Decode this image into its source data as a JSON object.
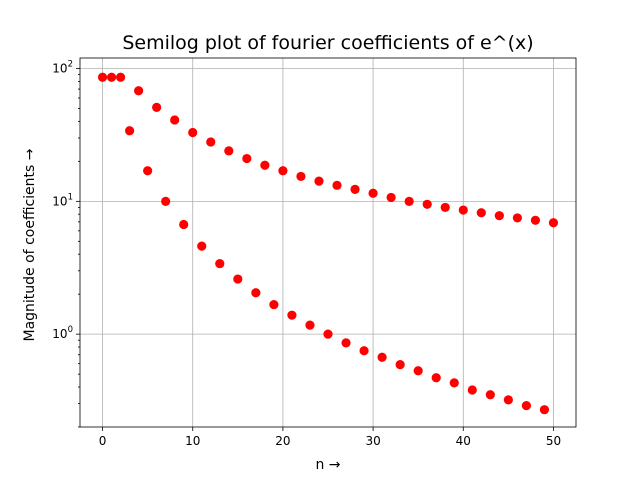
{
  "chart_data": {
    "type": "scatter",
    "title": "Semilog plot of fourier coefficients of e^(x)",
    "xlabel": "n →",
    "ylabel": "Magnitude of coefficients →",
    "yscale": "log",
    "xlim": [
      -2.5,
      52.5
    ],
    "ylim": [
      0.2,
      120
    ],
    "grid": true,
    "marker_color": "#ff0000",
    "x_ticks": [
      0,
      10,
      20,
      30,
      40,
      50
    ],
    "y_ticks": [
      {
        "value": 1,
        "base": "10",
        "exp": "0"
      },
      {
        "value": 10,
        "base": "10",
        "exp": "1"
      },
      {
        "value": 100,
        "base": "10",
        "exp": "2"
      }
    ],
    "series": [
      {
        "x": [
          0,
          1,
          2,
          4,
          6,
          8,
          10,
          12,
          14,
          16,
          18,
          20,
          22,
          24,
          26,
          28,
          30,
          32,
          34,
          36,
          38,
          40,
          42,
          44,
          46,
          48,
          50
        ],
        "values": [
          86,
          86,
          86,
          68,
          51,
          41,
          33,
          28,
          24,
          21,
          18.7,
          17,
          15.4,
          14.2,
          13.2,
          12.3,
          11.5,
          10.7,
          10.0,
          9.5,
          9.0,
          8.6,
          8.2,
          7.8,
          7.5,
          7.2,
          6.9
        ]
      },
      {
        "x": [
          3,
          5,
          7,
          9,
          11,
          13,
          15,
          17,
          19,
          21,
          23,
          25,
          27,
          29,
          31,
          33,
          35,
          37,
          39,
          41,
          43,
          45,
          47,
          49
        ],
        "values": [
          34,
          17,
          10,
          6.7,
          4.6,
          3.4,
          2.6,
          2.05,
          1.67,
          1.39,
          1.17,
          1.0,
          0.86,
          0.75,
          0.67,
          0.59,
          0.53,
          0.47,
          0.43,
          0.38,
          0.35,
          0.32,
          0.29,
          0.27
        ]
      }
    ]
  }
}
